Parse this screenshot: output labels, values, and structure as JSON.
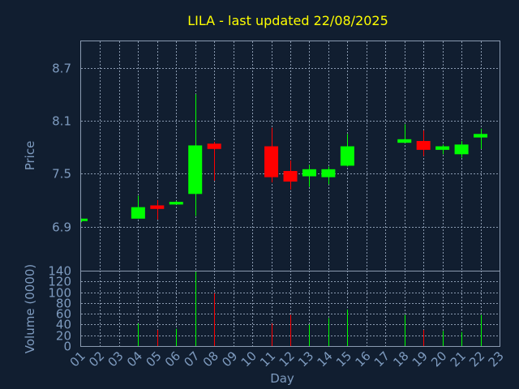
{
  "chart_data": {
    "type": "candlestick",
    "title": "LILA - last updated 22/08/2025",
    "xlabel": "Day",
    "price_panel": {
      "ylabel": "Price",
      "yticks": [
        "6.9",
        "7.5",
        "8.1",
        "8.7"
      ],
      "ylim": [
        6.4,
        9.0
      ]
    },
    "volume_panel": {
      "ylabel": "Volume (0000)",
      "yticks": [
        "0",
        "20",
        "40",
        "60",
        "80",
        "100",
        "120",
        "140"
      ],
      "ylim": [
        0,
        140
      ]
    },
    "x_ticks": [
      "01",
      "02",
      "03",
      "04",
      "05",
      "06",
      "07",
      "08",
      "09",
      "10",
      "11",
      "12",
      "13",
      "14",
      "15",
      "16",
      "17",
      "18",
      "19",
      "20",
      "21",
      "22",
      "23"
    ],
    "candles": [
      {
        "day": "01",
        "open": 6.97,
        "high": 6.99,
        "low": 6.95,
        "close": 6.99,
        "volume": 0
      },
      {
        "day": "04",
        "open": 6.99,
        "high": 7.25,
        "low": 6.99,
        "close": 7.12,
        "volume": 42
      },
      {
        "day": "05",
        "open": 7.14,
        "high": 7.2,
        "low": 6.98,
        "close": 7.1,
        "volume": 30
      },
      {
        "day": "06",
        "open": 7.15,
        "high": 7.19,
        "low": 7.15,
        "close": 7.18,
        "volume": 32
      },
      {
        "day": "07",
        "open": 7.27,
        "high": 8.4,
        "low": 7.02,
        "close": 7.82,
        "volume": 138
      },
      {
        "day": "08",
        "open": 7.84,
        "high": 7.86,
        "low": 7.42,
        "close": 7.78,
        "volume": 98
      },
      {
        "day": "11",
        "open": 7.81,
        "high": 8.02,
        "low": 7.4,
        "close": 7.46,
        "volume": 42
      },
      {
        "day": "12",
        "open": 7.53,
        "high": 7.65,
        "low": 7.32,
        "close": 7.41,
        "volume": 58
      },
      {
        "day": "13",
        "open": 7.47,
        "high": 7.6,
        "low": 7.35,
        "close": 7.55,
        "volume": 40
      },
      {
        "day": "14",
        "open": 7.46,
        "high": 7.58,
        "low": 7.38,
        "close": 7.55,
        "volume": 52
      },
      {
        "day": "15",
        "open": 7.59,
        "high": 7.95,
        "low": 7.58,
        "close": 7.81,
        "volume": 68
      },
      {
        "day": "18",
        "open": 7.85,
        "high": 8.06,
        "low": 7.85,
        "close": 7.89,
        "volume": 58
      },
      {
        "day": "19",
        "open": 7.87,
        "high": 7.99,
        "low": 7.7,
        "close": 7.77,
        "volume": 30
      },
      {
        "day": "20",
        "open": 7.77,
        "high": 7.83,
        "low": 7.72,
        "close": 7.81,
        "volume": 28
      },
      {
        "day": "21",
        "open": 7.72,
        "high": 7.87,
        "low": 7.68,
        "close": 7.83,
        "volume": 26
      },
      {
        "day": "22",
        "open": 7.91,
        "high": 8.01,
        "low": 7.78,
        "close": 7.95,
        "volume": 58
      }
    ],
    "colors": {
      "up": "#00ff00",
      "down": "#ff0000",
      "background": "#111e30",
      "grid": "#8a9ab0",
      "title": "#ffff00",
      "tick_text": "#7e9bbf"
    },
    "grid": true
  }
}
